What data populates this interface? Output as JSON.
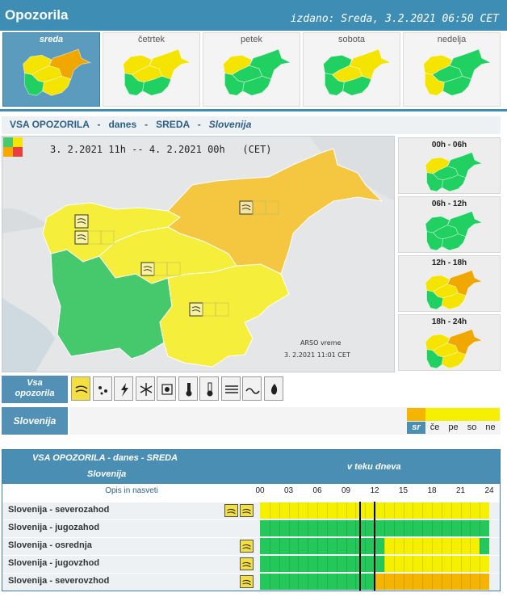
{
  "header": {
    "title": "Opozorila",
    "issued": "izdano: Sreda, 3.2.2021 06:50 CET"
  },
  "days": [
    {
      "label": "sreda",
      "active": true,
      "regions": [
        "#f5e400",
        "#20d060",
        "#f5e400",
        "#f5e400",
        "#f0a800"
      ]
    },
    {
      "label": "četrtek",
      "active": false,
      "regions": [
        "#f5e400",
        "#20d060",
        "#f5e400",
        "#20d060",
        "#f5e400"
      ]
    },
    {
      "label": "petek",
      "active": false,
      "regions": [
        "#f5e400",
        "#20d060",
        "#20d060",
        "#20d060",
        "#20d060"
      ]
    },
    {
      "label": "sobota",
      "active": false,
      "regions": [
        "#20d060",
        "#20d060",
        "#f5e400",
        "#20d060",
        "#f5e400"
      ]
    },
    {
      "label": "nedelja",
      "active": false,
      "regions": [
        "#f5e400",
        "#f5e400",
        "#20d060",
        "#20d060",
        "#20d060"
      ]
    }
  ],
  "title_bar": {
    "all": "VSA OPOZORILA",
    "today": "danes",
    "day": "SREDA",
    "country": "Slovenija"
  },
  "main_map": {
    "period": "3. 2.2021 11h -- 4. 2.2021 00h   (CET)",
    "credit": "ARSO vreme",
    "date": "3. 2.2021  11:01 CET",
    "regions": {
      "severozahod": "#f5ee3a",
      "jugozahod": "#45c96c",
      "osrednja": "#f5ee3a",
      "jugovzhod": "#f5ee3a",
      "severovzhod": "#f5c640"
    }
  },
  "slots": [
    {
      "label": "00h - 06h",
      "regions": [
        "#f5e400",
        "#20d060",
        "#20d060",
        "#20d060",
        "#20d060"
      ]
    },
    {
      "label": "06h - 12h",
      "regions": [
        "#20d060",
        "#20d060",
        "#20d060",
        "#20d060",
        "#20d060"
      ]
    },
    {
      "label": "12h - 18h",
      "regions": [
        "#f5e400",
        "#20d060",
        "#f5e400",
        "#f5e400",
        "#f0a800"
      ]
    },
    {
      "label": "18h - 24h",
      "regions": [
        "#f5e400",
        "#20d060",
        "#f5e400",
        "#f5e400",
        "#f0a800"
      ]
    }
  ],
  "types": {
    "label_line1": "Vsa",
    "label_line2": "opozorila",
    "icons": [
      "wind-icon",
      "rain-icon",
      "thunderstorm-icon",
      "snow-icon",
      "ice-icon",
      "heat-icon",
      "cold-icon",
      "fog-icon",
      "coastal-icon",
      "forest-fire-icon"
    ]
  },
  "region_bar": {
    "label": "Slovenija",
    "days": [
      {
        "label": "sr",
        "color": "#f5b400",
        "selected": true
      },
      {
        "label": "če",
        "color": "#f5f000",
        "selected": false
      },
      {
        "label": "pe",
        "color": "#f5f000",
        "selected": false
      },
      {
        "label": "so",
        "color": "#f5f000",
        "selected": false
      },
      {
        "label": "ne",
        "color": "#f5f000",
        "selected": false
      }
    ]
  },
  "table": {
    "header_line1": "VSA OPOZORILA - danes - SREDA",
    "header_line2": "Slovenija",
    "header_right": "v teku dneva",
    "col_desc": "Opis in nasveti",
    "hours": [
      "00",
      "03",
      "06",
      "09",
      "12",
      "15",
      "18",
      "21",
      "24"
    ],
    "now_hours": [
      10.5,
      12
    ],
    "rows": [
      {
        "name": "Slovenija - severozahod",
        "icons": [
          "wind-icon",
          "wind-icon"
        ],
        "segments": [
          {
            "from": 0,
            "to": 24,
            "color": "#f5f000"
          }
        ]
      },
      {
        "name": "Slovenija - jugozahod",
        "icons": [],
        "segments": [
          {
            "from": 0,
            "to": 24,
            "color": "#24c85a"
          }
        ]
      },
      {
        "name": "Slovenija - osrednja",
        "icons": [
          "wind-icon"
        ],
        "segments": [
          {
            "from": 0,
            "to": 13,
            "color": "#24c85a"
          },
          {
            "from": 13,
            "to": 23,
            "color": "#f5f000"
          },
          {
            "from": 23,
            "to": 24,
            "color": "#24c85a"
          }
        ]
      },
      {
        "name": "Slovenija - jugovzhod",
        "icons": [
          "wind-icon"
        ],
        "segments": [
          {
            "from": 0,
            "to": 13,
            "color": "#24c85a"
          },
          {
            "from": 13,
            "to": 24,
            "color": "#f5f000"
          }
        ]
      },
      {
        "name": "Slovenija - severovzhod",
        "icons": [
          "wind-icon"
        ],
        "segments": [
          {
            "from": 0,
            "to": 12,
            "color": "#24c85a"
          },
          {
            "from": 12,
            "to": 24,
            "color": "#f5b400"
          }
        ]
      }
    ]
  }
}
